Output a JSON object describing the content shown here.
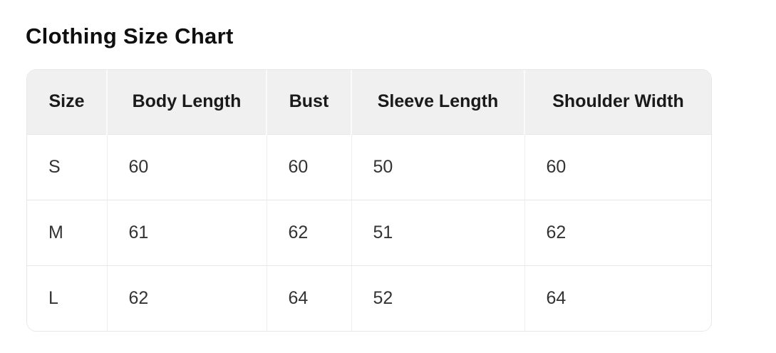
{
  "page": {
    "title": "Clothing Size Chart"
  },
  "colors": {
    "page_background": "#ffffff",
    "title_text": "#0f0f0f",
    "header_background": "#f0f0f0",
    "header_text": "#1a1a1a",
    "body_text": "#333333",
    "row_border": "#e7e7e7",
    "header_divider": "#fafafa",
    "column_divider": "#eeeeee"
  },
  "chart_data": {
    "type": "table",
    "title": "Clothing Size Chart",
    "columns": [
      "Size",
      "Body Length",
      "Bust",
      "Sleeve Length",
      "Shoulder Width"
    ],
    "rows": [
      [
        "S",
        "60",
        "60",
        "50",
        "60"
      ],
      [
        "M",
        "61",
        "62",
        "51",
        "62"
      ],
      [
        "L",
        "62",
        "64",
        "52",
        "64"
      ]
    ]
  }
}
